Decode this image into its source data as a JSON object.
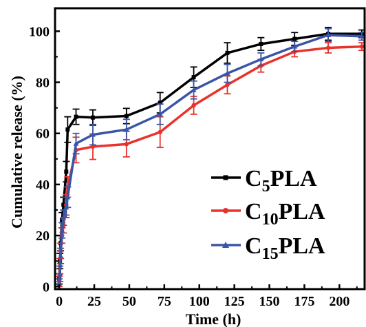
{
  "chart_data": {
    "type": "line",
    "title": "",
    "xlabel": "Time (h)",
    "ylabel": "Cumulative release (%)",
    "xlim": [
      -3,
      218
    ],
    "ylim": [
      -1,
      109
    ],
    "xticks": [
      0,
      25,
      50,
      75,
      100,
      125,
      150,
      175,
      200
    ],
    "yticks": [
      0,
      20,
      40,
      60,
      80,
      100
    ],
    "xtick_labels": [
      "0",
      "25",
      "50",
      "75",
      "100",
      "125",
      "150",
      "175",
      "200"
    ],
    "ytick_labels": [
      "0",
      "20",
      "40",
      "60",
      "80",
      "100"
    ],
    "x": [
      0,
      0.5,
      1,
      2,
      3,
      5,
      6,
      12,
      24,
      48,
      72,
      96,
      120,
      144,
      168,
      192,
      216
    ],
    "legend_position": "bottom-right",
    "series": [
      {
        "name_prefix": "C",
        "name_sub": "5",
        "name_suffix": "PLA",
        "color": "#000000",
        "marker": "square",
        "values": [
          3,
          10,
          17,
          26,
          32,
          45,
          61.5,
          66.5,
          66.2,
          66.8,
          72,
          82,
          91.5,
          95,
          97,
          99,
          99
        ],
        "errors": [
          2,
          3,
          3,
          3,
          3,
          4,
          5,
          3,
          3,
          3,
          4,
          4,
          4,
          2.5,
          2.5,
          2.5,
          1.5
        ]
      },
      {
        "name_prefix": "C",
        "name_sub": "10",
        "name_suffix": "PLA",
        "color": "#e8322b",
        "marker": "circle",
        "values": [
          2,
          8,
          14,
          20,
          24,
          32,
          39,
          53.5,
          54.8,
          55.8,
          60.5,
          71,
          79,
          86.5,
          92,
          93.5,
          94
        ],
        "errors": [
          2,
          3,
          3,
          3,
          3,
          4,
          4,
          5,
          5,
          5,
          6,
          3.5,
          3.5,
          2.5,
          2,
          2,
          1.5
        ]
      },
      {
        "name_prefix": "C",
        "name_sub": "15",
        "name_suffix": "PLA",
        "color": "#3a55a8",
        "marker": "triangle",
        "values": [
          1,
          5,
          12,
          22,
          27,
          31,
          35,
          56,
          59.5,
          61.5,
          67.5,
          77,
          83.5,
          89,
          94,
          98.5,
          98
        ],
        "errors": [
          2,
          3,
          3,
          3,
          3,
          4,
          4,
          4,
          4,
          4,
          4,
          3.5,
          3.5,
          2.5,
          2,
          2.5,
          1.5
        ]
      }
    ]
  }
}
